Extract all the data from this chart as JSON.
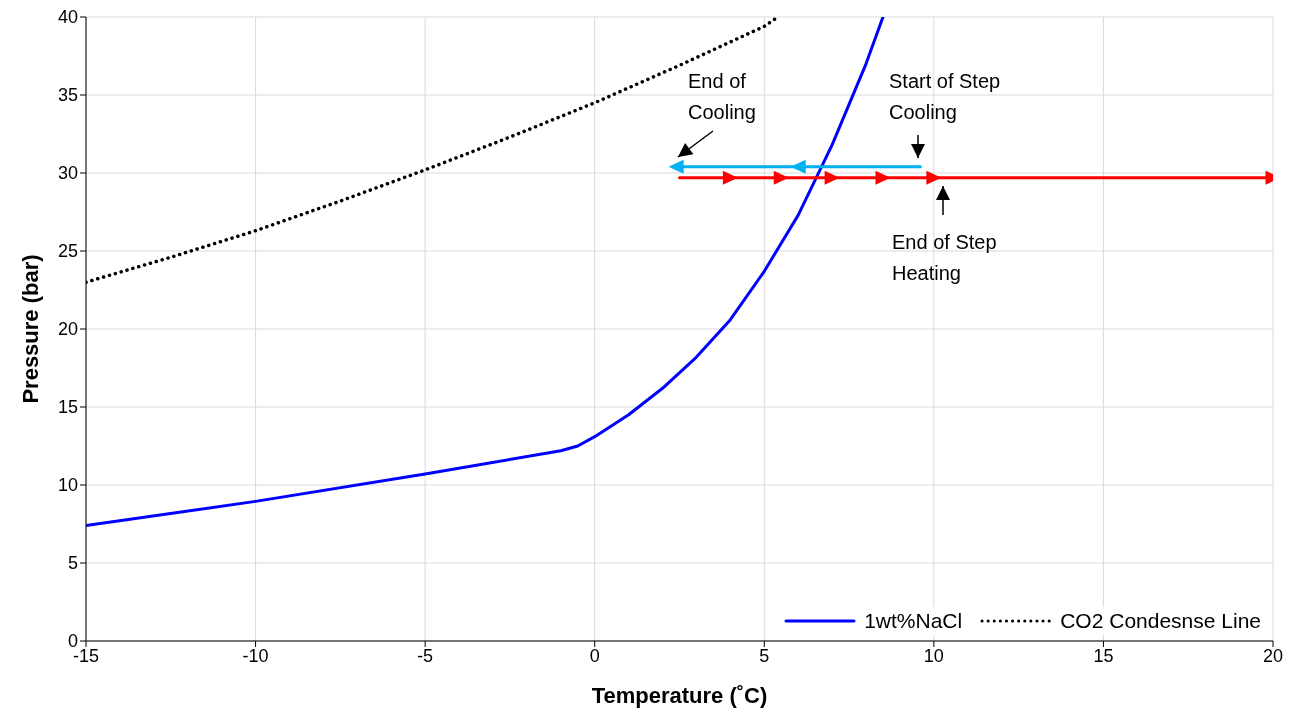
{
  "chart_data": {
    "type": "line",
    "xlabel": "Temperature (˚C)",
    "ylabel": "Pressure (bar)",
    "xlim": [
      -15,
      20
    ],
    "xticks": [
      -15,
      -10,
      -5,
      0,
      5,
      10,
      15,
      20
    ],
    "ylim": [
      0,
      40
    ],
    "yticks": [
      0,
      5,
      10,
      15,
      20,
      25,
      30,
      35,
      40
    ],
    "grid": true,
    "legend": "bottom right",
    "series": [
      {
        "name": "1wt%NaCl",
        "color": "#0000ff",
        "line_style": "solid",
        "marker": "none",
        "x": [
          -15,
          -10,
          -5,
          -1,
          -0.5,
          0,
          1,
          2,
          3,
          4,
          5,
          6,
          7,
          8,
          8.5
        ],
        "values": [
          7.4,
          8.95,
          10.7,
          12.2,
          12.5,
          13.1,
          14.5,
          16.2,
          18.2,
          20.6,
          23.7,
          27.3,
          31.8,
          37.0,
          40
        ]
      },
      {
        "name": "CO2 Condesnse Line",
        "color": "#000000",
        "line_style": "dotted",
        "marker": "none",
        "x": [
          -15,
          -12.5,
          -10,
          -7.5,
          -5,
          -2.5,
          0,
          2.5,
          5,
          5.4
        ],
        "values": [
          23,
          24.6,
          26.3,
          28.2,
          30.2,
          32.3,
          34.5,
          36.9,
          39.4,
          40
        ]
      },
      {
        "color": "#ff0000",
        "line_style": "solid",
        "marker": "triangle",
        "x": [
          2.5,
          4,
          5.5,
          7,
          8.5,
          10,
          20
        ],
        "values": [
          29.7,
          29.7,
          29.7,
          29.7,
          29.7,
          29.7,
          29.7
        ]
      },
      {
        "color": "#00b0f0",
        "line_style": "solid",
        "marker": "triangle",
        "x": [
          9.6,
          6,
          2.4
        ],
        "values": [
          30.4,
          30.4,
          30.4
        ]
      }
    ],
    "annotations": [
      "End of Cooling",
      "Start of Step Cooling",
      "End of Step Heating"
    ]
  }
}
